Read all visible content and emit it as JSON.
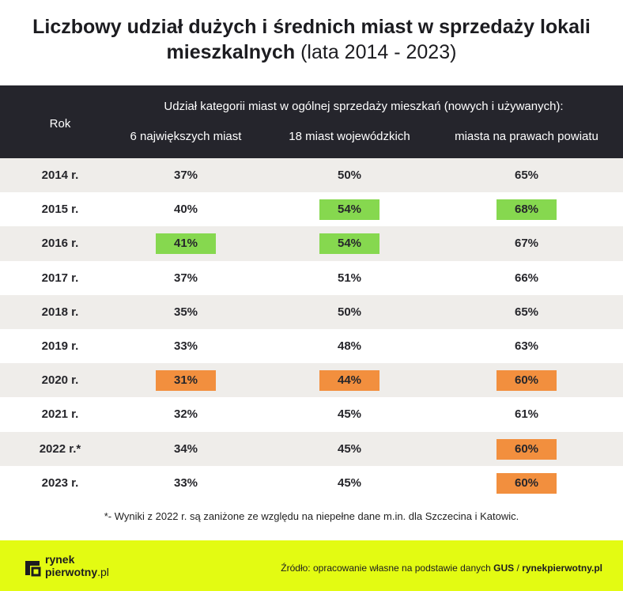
{
  "title": {
    "bold": "Liczbowy udział dużych i średnich miast w sprzedaży lokali mieszkalnych",
    "light": "(lata 2014 - 2023)"
  },
  "header": {
    "year_col": "Rok",
    "group_label": "Udział kategorii miast w ogólnej sprzedaży mieszkań (nowych i używanych):",
    "columns": [
      "6 największych miast",
      "18 miast wojewódzkich",
      "miasta na prawach powiatu"
    ]
  },
  "colors": {
    "header_bg": "#25252c",
    "row_shade": "#efedea",
    "highlight_max": "#86d84f",
    "highlight_min": "#f28f3e",
    "footer_bg": "#e3fb12"
  },
  "chart_data": {
    "type": "table",
    "columns": [
      "Rok",
      "6 największych miast",
      "18 miast wojewódzkich",
      "miasta na prawach powiatu"
    ],
    "rows": [
      {
        "year": "2014 r.",
        "values": [
          "37%",
          "50%",
          "65%"
        ],
        "highlight": [
          "",
          "",
          ""
        ]
      },
      {
        "year": "2015 r.",
        "values": [
          "40%",
          "54%",
          "68%"
        ],
        "highlight": [
          "",
          "green",
          "green"
        ]
      },
      {
        "year": "2016 r.",
        "values": [
          "41%",
          "54%",
          "67%"
        ],
        "highlight": [
          "green",
          "green",
          ""
        ]
      },
      {
        "year": "2017 r.",
        "values": [
          "37%",
          "51%",
          "66%"
        ],
        "highlight": [
          "",
          "",
          ""
        ]
      },
      {
        "year": "2018 r.",
        "values": [
          "35%",
          "50%",
          "65%"
        ],
        "highlight": [
          "",
          "",
          ""
        ]
      },
      {
        "year": "2019 r.",
        "values": [
          "33%",
          "48%",
          "63%"
        ],
        "highlight": [
          "",
          "",
          ""
        ]
      },
      {
        "year": "2020 r.",
        "values": [
          "31%",
          "44%",
          "60%"
        ],
        "highlight": [
          "orange",
          "orange",
          "orange"
        ]
      },
      {
        "year": "2021 r.",
        "values": [
          "32%",
          "45%",
          "61%"
        ],
        "highlight": [
          "",
          "",
          ""
        ]
      },
      {
        "year": "2022 r.*",
        "values": [
          "34%",
          "45%",
          "60%"
        ],
        "highlight": [
          "",
          "",
          "orange"
        ]
      },
      {
        "year": "2023 r.",
        "values": [
          "33%",
          "45%",
          "60%"
        ],
        "highlight": [
          "",
          "",
          "orange"
        ]
      }
    ]
  },
  "footnote": "*- Wyniki z 2022 r. są zaniżone ze względu na niepełne dane m.in. dla Szczecina i Katowic.",
  "footer": {
    "logo_line1": "rynek",
    "logo_line2": "pierwotny",
    "logo_tld": ".pl",
    "source_prefix": "Źródło: opracowanie własne na podstawie danych",
    "source_gus": "GUS",
    "source_sep": "/",
    "source_site": "rynekpierwotny.pl"
  }
}
